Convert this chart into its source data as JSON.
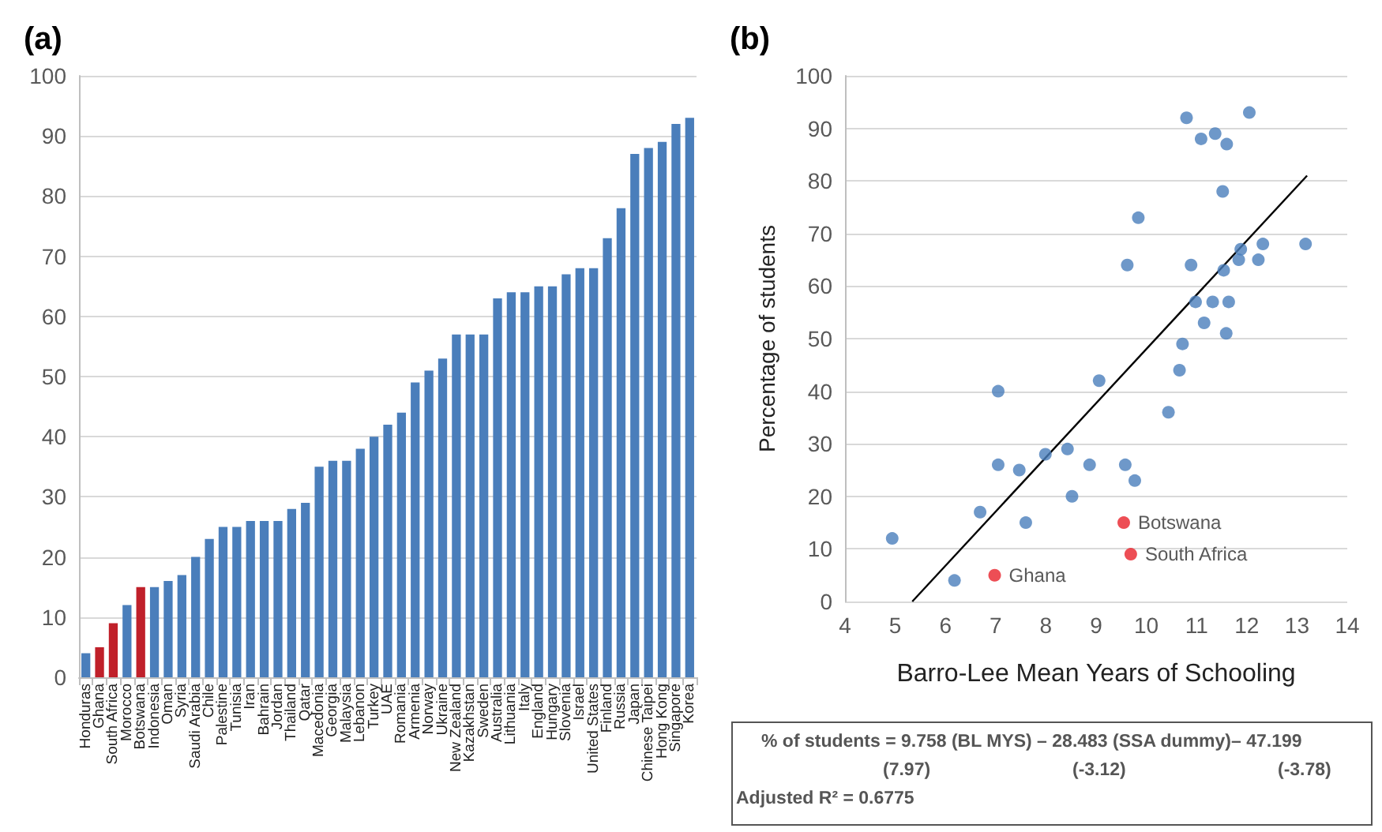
{
  "chart_data": [
    {
      "type": "bar",
      "title": "(a)",
      "categories": [
        "Honduras",
        "Ghana",
        "South Africa",
        "Morocco",
        "Botswana",
        "Indonesia",
        "Oman",
        "Syria",
        "Saudi Arabia",
        "Chile",
        "Palestine",
        "Tunisia",
        "Iran",
        "Bahrain",
        "Jordan",
        "Thailand",
        "Qatar",
        "Macedonia",
        "Georgia",
        "Malaysia",
        "Lebanon",
        "Turkey",
        "UAE",
        "Romania",
        "Armenia",
        "Norway",
        "Ukraine",
        "New Zealand",
        "Kazakhstan",
        "Sweden",
        "Australia",
        "Lithuania",
        "Italy",
        "England",
        "Hungary",
        "Slovenia",
        "Israel",
        "United States",
        "Finland",
        "Russia",
        "Japan",
        "Chinese Taipei",
        "Hong Kong",
        "Singapore",
        "Korea"
      ],
      "values": [
        4,
        5,
        9,
        12,
        15,
        15,
        16,
        17,
        20,
        23,
        25,
        25,
        26,
        26,
        26,
        28,
        29,
        35,
        36,
        36,
        38,
        40,
        42,
        44,
        49,
        51,
        53,
        57,
        57,
        57,
        63,
        64,
        64,
        65,
        65,
        67,
        68,
        68,
        73,
        78,
        87,
        88,
        89,
        92,
        93
      ],
      "colors": [
        "#4a7ebb",
        "#c0202a",
        "#c0202a",
        "#4a7ebb",
        "#c0202a",
        "#4a7ebb",
        "#4a7ebb",
        "#4a7ebb",
        "#4a7ebb",
        "#4a7ebb",
        "#4a7ebb",
        "#4a7ebb",
        "#4a7ebb",
        "#4a7ebb",
        "#4a7ebb",
        "#4a7ebb",
        "#4a7ebb",
        "#4a7ebb",
        "#4a7ebb",
        "#4a7ebb",
        "#4a7ebb",
        "#4a7ebb",
        "#4a7ebb",
        "#4a7ebb",
        "#4a7ebb",
        "#4a7ebb",
        "#4a7ebb",
        "#4a7ebb",
        "#4a7ebb",
        "#4a7ebb",
        "#4a7ebb",
        "#4a7ebb",
        "#4a7ebb",
        "#4a7ebb",
        "#4a7ebb",
        "#4a7ebb",
        "#4a7ebb",
        "#4a7ebb",
        "#4a7ebb",
        "#4a7ebb",
        "#4a7ebb",
        "#4a7ebb",
        "#4a7ebb",
        "#4a7ebb",
        "#4a7ebb"
      ],
      "ylim": [
        0,
        100
      ],
      "yticks": [
        0,
        10,
        20,
        30,
        40,
        50,
        60,
        70,
        80,
        90,
        100
      ],
      "grid": "y"
    },
    {
      "type": "scatter",
      "title": "(b)",
      "xlabel": "Barro-Lee Mean Years of Schooling",
      "ylabel": "Percentage of students",
      "series": [
        {
          "color": "#4a7ebb",
          "x": [
            4.94,
            6.18,
            6.69,
            7.05,
            7.05,
            7.47,
            7.6,
            7.99,
            8.43,
            8.52,
            8.87,
            9.06,
            9.58,
            9.62,
            9.77,
            9.84,
            10.44,
            10.66,
            10.72,
            10.8,
            10.89,
            10.98,
            11.09,
            11.15,
            11.32,
            11.37,
            11.52,
            11.54,
            11.59,
            11.6,
            11.64,
            11.84,
            11.88,
            12.05,
            12.23,
            12.32,
            13.17
          ],
          "values": [
            12,
            4,
            17,
            40,
            26,
            25,
            15,
            28,
            29,
            20,
            26,
            42,
            26,
            64,
            23,
            73,
            36,
            44,
            49,
            92,
            64,
            57,
            88,
            53,
            57,
            89,
            78,
            63,
            51,
            87,
            57,
            65,
            67,
            93,
            65,
            68,
            68
          ]
        },
        {
          "color": "#e8222a",
          "x": [
            6.98,
            9.55,
            9.69
          ],
          "values": [
            5,
            15,
            9
          ]
        },
        {
          "type": "line",
          "marker": "none",
          "color": "#000000",
          "x": [
            5.34,
            13.2
          ],
          "values": [
            0,
            81
          ]
        }
      ],
      "xlim": [
        4,
        14
      ],
      "xticks": [
        4,
        5,
        6,
        7,
        8,
        9,
        10,
        11,
        12,
        13,
        14
      ],
      "ylim": [
        0,
        100
      ],
      "yticks": [
        0,
        10,
        20,
        30,
        40,
        50,
        60,
        70,
        80,
        90,
        100
      ],
      "grid": "y",
      "marker": "circle",
      "annotations": [
        {
          "text": "Ghana",
          "x": 6.98,
          "y": 5
        },
        {
          "text": "Botswana",
          "x": 9.55,
          "y": 15
        },
        {
          "text": "South Africa",
          "x": 9.69,
          "y": 9
        },
        "% of students = 9.758 (BL MYS) – 28.483 (SSA dummy)– 47.199",
        "(7.97)",
        "(-3.12)",
        "(-3.78)",
        "Adjusted R² = 0.6775"
      ]
    }
  ]
}
